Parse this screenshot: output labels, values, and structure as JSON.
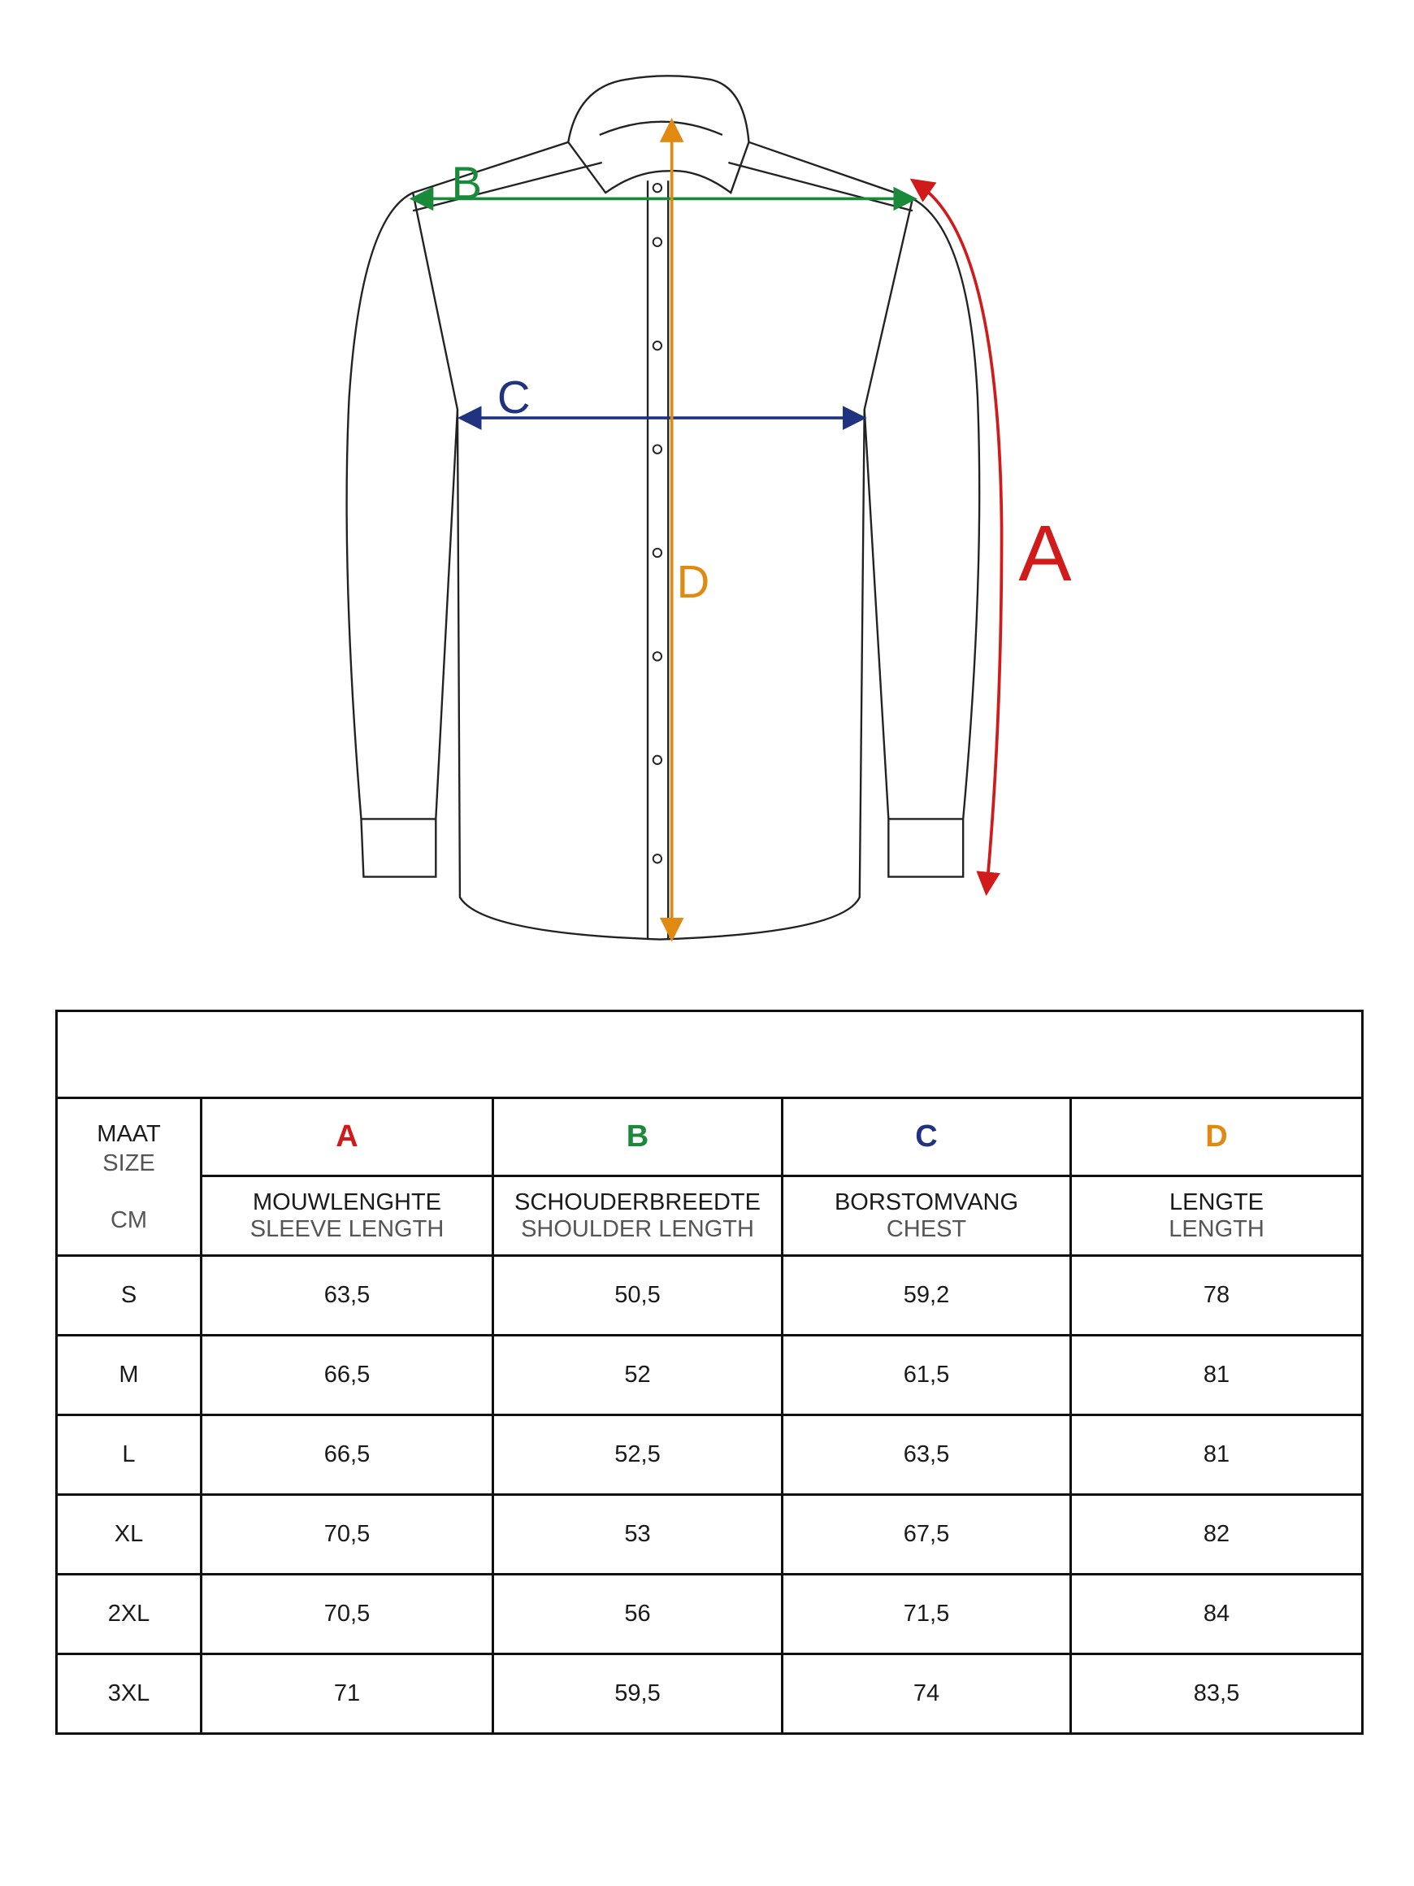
{
  "diagram": {
    "labels": {
      "A": "A",
      "B": "B",
      "C": "C",
      "D": "D"
    },
    "colors": {
      "A": "#d11a1a",
      "B": "#1a8a3a",
      "C": "#1f3380",
      "D": "#e08a12"
    }
  },
  "table": {
    "title": "",
    "size_header": {
      "line1": "MAAT",
      "line2": "SIZE",
      "unit": "CM"
    },
    "columns": [
      {
        "letter": "A",
        "nl": "MOUWLENGHTE",
        "en": "SLEEVE LENGTH"
      },
      {
        "letter": "B",
        "nl": "SCHOUDERBREEDTE",
        "en": "SHOULDER LENGTH"
      },
      {
        "letter": "C",
        "nl": "BORSTOMVANG",
        "en": "CHEST"
      },
      {
        "letter": "D",
        "nl": "LENGTE",
        "en": "LENGTH"
      }
    ],
    "rows": [
      {
        "size": "S",
        "values": [
          "63,5",
          "50,5",
          "59,2",
          "78"
        ]
      },
      {
        "size": "M",
        "values": [
          "66,5",
          "52",
          "61,5",
          "81"
        ]
      },
      {
        "size": "L",
        "values": [
          "66,5",
          "52,5",
          "63,5",
          "81"
        ]
      },
      {
        "size": "XL",
        "values": [
          "70,5",
          "53",
          "67,5",
          "82"
        ]
      },
      {
        "size": "2XL",
        "values": [
          "70,5",
          "56",
          "71,5",
          "84"
        ]
      },
      {
        "size": "3XL",
        "values": [
          "71",
          "59,5",
          "74",
          "83,5"
        ]
      }
    ]
  }
}
